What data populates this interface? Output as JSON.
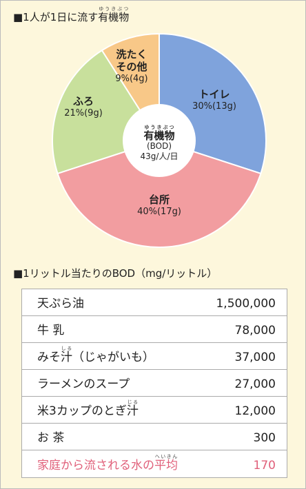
{
  "chart_data": {
    "type": "pie",
    "title_prefix": "■1人が1日に流す",
    "title_ruby_base": "有機物",
    "title_ruby": "ゆうきぶつ",
    "categories": [
      "トイレ",
      "台所",
      "ふろ",
      "洗たくその他"
    ],
    "values": [
      30,
      40,
      21,
      9
    ],
    "value_labels": [
      "30%(13g)",
      "40%(17g)",
      "21%(9g)",
      "9%(4g)"
    ],
    "colors": [
      "#7fa3dc",
      "#f29da0",
      "#c8e09c",
      "#f8c888"
    ],
    "center": {
      "ruby_base": "有機物",
      "ruby": "ゆうきぶつ",
      "lines": [
        "(BOD)",
        "43g/人/日"
      ]
    }
  },
  "table": {
    "title": "■1リットル当たりのBOD（mg/リットル）",
    "rows": [
      {
        "label": "天ぷら油",
        "value": "1,500,000"
      },
      {
        "label": "牛 乳",
        "value": "78,000"
      },
      {
        "label_before": "みそ",
        "ruby_base": "汁",
        "ruby": "しる",
        "label_after": "（じゃがいも）",
        "value": "37,000"
      },
      {
        "label": "ラーメンのスープ",
        "value": "27,000"
      },
      {
        "label_before": "米3カップのとぎ",
        "ruby_base": "汁",
        "ruby": "じる",
        "label_after": "",
        "value": "12,000"
      },
      {
        "label": "お 茶",
        "value": "300"
      },
      {
        "label_before": "家庭から流される水の",
        "ruby_base": "平均",
        "ruby": "へいきん",
        "label_after": "",
        "value": "170"
      }
    ]
  }
}
